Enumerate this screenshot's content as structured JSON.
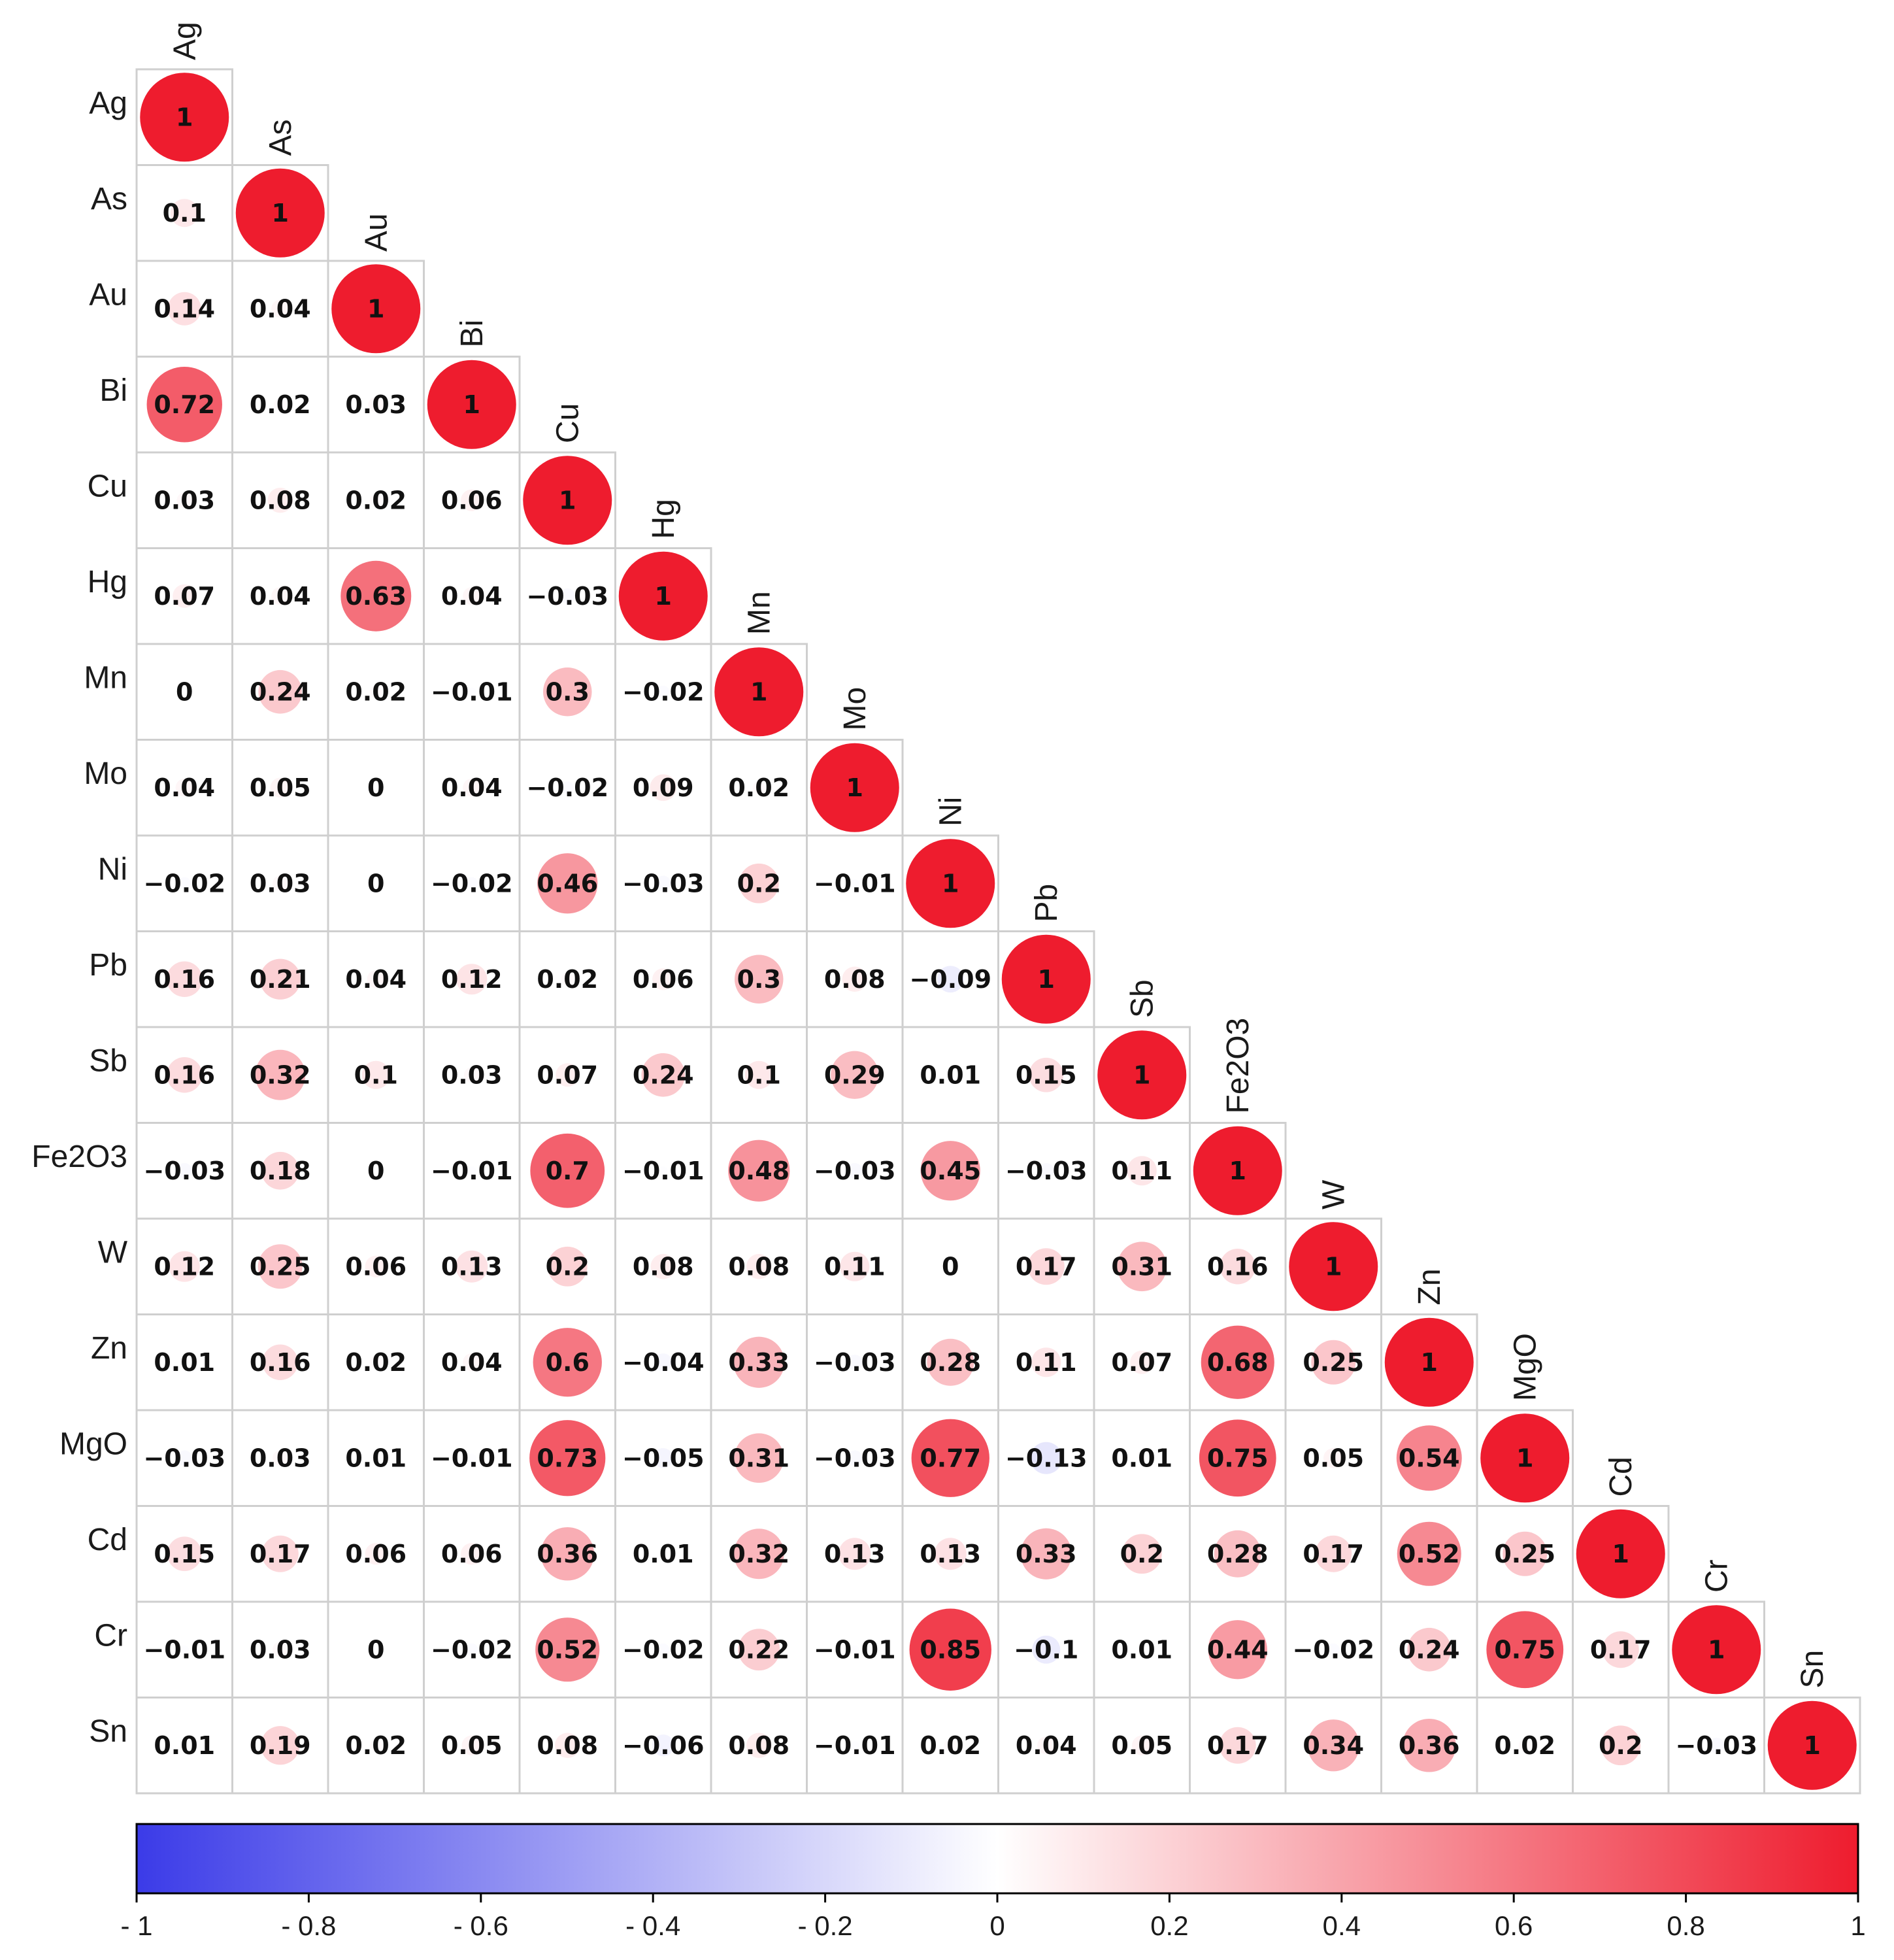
{
  "chart_data": {
    "type": "heatmap",
    "subtype": "lower-triangular correlation matrix (circle glyphs)",
    "variables": [
      "Ag",
      "As",
      "Au",
      "Bi",
      "Cu",
      "Hg",
      "Mn",
      "Mo",
      "Ni",
      "Pb",
      "Sb",
      "Fe2O3",
      "W",
      "Zn",
      "MgO",
      "Cd",
      "Cr",
      "Sn"
    ],
    "matrix": [
      [
        1
      ],
      [
        0.1,
        1
      ],
      [
        0.14,
        0.04,
        1
      ],
      [
        0.72,
        0.02,
        0.03,
        1
      ],
      [
        0.03,
        0.08,
        0.02,
        0.06,
        1
      ],
      [
        0.07,
        0.04,
        0.63,
        0.04,
        -0.03,
        1
      ],
      [
        0,
        0.24,
        0.02,
        -0.01,
        0.3,
        -0.02,
        1
      ],
      [
        0.04,
        0.05,
        0,
        0.04,
        -0.02,
        0.09,
        0.02,
        1
      ],
      [
        -0.02,
        0.03,
        0,
        -0.02,
        0.46,
        -0.03,
        0.2,
        -0.01,
        1
      ],
      [
        0.16,
        0.21,
        0.04,
        0.12,
        0.02,
        0.06,
        0.3,
        0.08,
        -0.09,
        1
      ],
      [
        0.16,
        0.32,
        0.1,
        0.03,
        0.07,
        0.24,
        0.1,
        0.29,
        0.01,
        0.15,
        1
      ],
      [
        -0.03,
        0.18,
        0,
        -0.01,
        0.7,
        -0.01,
        0.48,
        -0.03,
        0.45,
        -0.03,
        0.11,
        1
      ],
      [
        0.12,
        0.25,
        0.06,
        0.13,
        0.2,
        0.08,
        0.08,
        0.11,
        0,
        0.17,
        0.31,
        0.16,
        1
      ],
      [
        0.01,
        0.16,
        0.02,
        0.04,
        0.6,
        -0.04,
        0.33,
        -0.03,
        0.28,
        0.11,
        0.07,
        0.68,
        0.25,
        1
      ],
      [
        -0.03,
        0.03,
        0.01,
        -0.01,
        0.73,
        -0.05,
        0.31,
        -0.03,
        0.77,
        -0.13,
        0.01,
        0.75,
        0.05,
        0.54,
        1
      ],
      [
        0.15,
        0.17,
        0.06,
        0.06,
        0.36,
        0.01,
        0.32,
        0.13,
        0.13,
        0.33,
        0.2,
        0.28,
        0.17,
        0.52,
        0.25,
        1
      ],
      [
        -0.01,
        0.03,
        0,
        -0.02,
        0.52,
        -0.02,
        0.22,
        -0.01,
        0.85,
        -0.1,
        0.01,
        0.44,
        -0.02,
        0.24,
        0.75,
        0.17,
        1
      ],
      [
        0.01,
        0.19,
        0.02,
        0.05,
        0.08,
        -0.06,
        0.08,
        -0.01,
        0.02,
        0.04,
        0.05,
        0.17,
        0.34,
        0.36,
        0.02,
        0.2,
        -0.03,
        1
      ]
    ],
    "colorbar": {
      "range": [
        -1,
        1
      ],
      "ticks": [
        -1,
        -0.8,
        -0.6,
        -0.4,
        -0.2,
        0,
        0.2,
        0.4,
        0.6,
        0.8,
        1
      ],
      "tick_labels": [
        "- 1",
        "- 0.8",
        "- 0.6",
        "- 0.4",
        "- 0.2",
        "0",
        "0.2",
        "0.4",
        "0.6",
        "0.8",
        "1"
      ],
      "colors": {
        "negative": "#3b3be8",
        "neutral": "#ffffff",
        "positive": "#ee1c2e"
      }
    },
    "glyph": "circle, area proportional to |r|, filled by colour scale",
    "title": "",
    "xlabel": "",
    "ylabel": ""
  }
}
